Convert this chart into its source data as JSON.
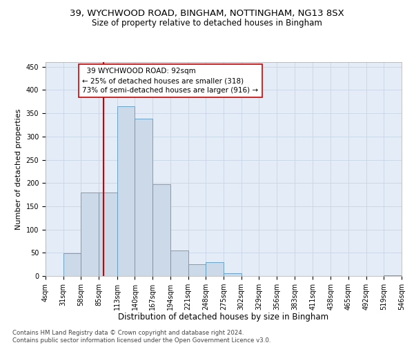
{
  "title_line1": "39, WYCHWOOD ROAD, BINGHAM, NOTTINGHAM, NG13 8SX",
  "title_line2": "Size of property relative to detached houses in Bingham",
  "xlabel": "Distribution of detached houses by size in Bingham",
  "ylabel": "Number of detached properties",
  "bin_labels": [
    "4sqm",
    "31sqm",
    "58sqm",
    "85sqm",
    "113sqm",
    "140sqm",
    "167sqm",
    "194sqm",
    "221sqm",
    "248sqm",
    "275sqm",
    "302sqm",
    "329sqm",
    "356sqm",
    "383sqm",
    "411sqm",
    "438sqm",
    "465sqm",
    "492sqm",
    "519sqm",
    "546sqm"
  ],
  "bin_edges": [
    4,
    31,
    58,
    85,
    113,
    140,
    167,
    194,
    221,
    248,
    275,
    302,
    329,
    356,
    383,
    411,
    438,
    465,
    492,
    519,
    546
  ],
  "bar_heights": [
    0,
    49,
    180,
    180,
    365,
    338,
    198,
    55,
    25,
    30,
    6,
    0,
    0,
    0,
    0,
    0,
    0,
    0,
    0,
    1
  ],
  "bar_color": "#ccd9e8",
  "bar_edge_color": "#5a9abf",
  "vline_x": 92,
  "vline_color": "#cc0000",
  "annotation_text": "  39 WYCHWOOD ROAD: 92sqm\n← 25% of detached houses are smaller (318)\n73% of semi-detached houses are larger (916) →",
  "annotation_box_color": "white",
  "annotation_box_edge_color": "#cc0000",
  "ylim": [
    0,
    460
  ],
  "yticks": [
    0,
    50,
    100,
    150,
    200,
    250,
    300,
    350,
    400,
    450
  ],
  "grid_color": "#c8d4e4",
  "bg_color": "#e4ecf8",
  "footnote": "Contains HM Land Registry data © Crown copyright and database right 2024.\nContains public sector information licensed under the Open Government Licence v3.0.",
  "title_fontsize": 9.5,
  "subtitle_fontsize": 8.5,
  "xlabel_fontsize": 8.5,
  "ylabel_fontsize": 8,
  "tick_fontsize": 7,
  "annotation_fontsize": 7.5,
  "footnote_fontsize": 6.2
}
